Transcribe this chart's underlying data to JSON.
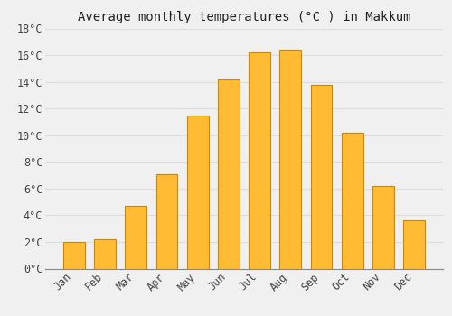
{
  "title": "Average monthly temperatures (°C ) in Makkum",
  "months": [
    "Jan",
    "Feb",
    "Mar",
    "Apr",
    "May",
    "Jun",
    "Jul",
    "Aug",
    "Sep",
    "Oct",
    "Nov",
    "Dec"
  ],
  "values": [
    2.0,
    2.2,
    4.7,
    7.1,
    11.5,
    14.2,
    16.2,
    16.4,
    13.8,
    10.2,
    6.2,
    3.6
  ],
  "bar_color": "#FFBB33",
  "bar_edge_color": "#CC8800",
  "bar_edge_width": 0.8,
  "background_color": "#F0F0F0",
  "grid_color": "#DDDDDD",
  "text_color": "#444444",
  "ylim": [
    0,
    18
  ],
  "yticks": [
    0,
    2,
    4,
    6,
    8,
    10,
    12,
    14,
    16,
    18
  ],
  "bar_width": 0.7,
  "title_fontsize": 10,
  "tick_fontsize": 8.5,
  "title_color": "#222222"
}
